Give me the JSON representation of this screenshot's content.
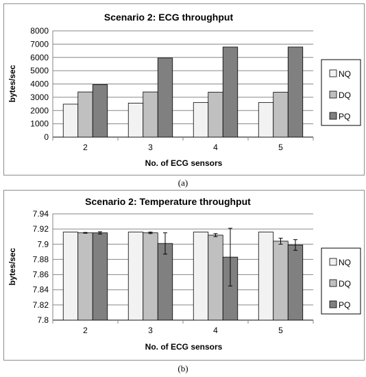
{
  "chart_data": [
    {
      "type": "bar",
      "title": "Scenario 2:  ECG throughput",
      "xlabel": "No. of ECG sensors",
      "ylabel": "bytes/sec",
      "categories": [
        "2",
        "3",
        "4",
        "5"
      ],
      "ylim": [
        0,
        8000
      ],
      "yticks": [
        "0",
        "1000",
        "2000",
        "3000",
        "4000",
        "5000",
        "6000",
        "7000",
        "8000"
      ],
      "grid": true,
      "legend_position": "right",
      "series": [
        {
          "name": "NQ",
          "color": "#f2f2f2",
          "values": [
            2480,
            2560,
            2600,
            2600
          ]
        },
        {
          "name": "DQ",
          "color": "#c0c0c0",
          "values": [
            3400,
            3400,
            3380,
            3380
          ]
        },
        {
          "name": "PQ",
          "color": "#808080",
          "values": [
            3950,
            5950,
            6780,
            6780
          ]
        }
      ]
    },
    {
      "type": "bar",
      "title": "Scenario 2:  Temperature throughput",
      "xlabel": "No. of ECG sensors",
      "ylabel": "bytes/sec",
      "categories": [
        "2",
        "3",
        "4",
        "5"
      ],
      "ylim": [
        7.8,
        7.94
      ],
      "yticks": [
        "7.8",
        "7.82",
        "7.84",
        "7.86",
        "7.88",
        "7.9",
        "7.92",
        "7.94"
      ],
      "grid": true,
      "legend_position": "right",
      "series": [
        {
          "name": "NQ",
          "color": "#f2f2f2",
          "values": [
            7.916,
            7.916,
            7.916,
            7.916
          ],
          "errors": [
            0,
            0,
            0,
            0
          ]
        },
        {
          "name": "DQ",
          "color": "#c0c0c0",
          "values": [
            7.915,
            7.915,
            7.912,
            7.904
          ],
          "errors": [
            0.0005,
            0.001,
            0.002,
            0.004
          ]
        },
        {
          "name": "PQ",
          "color": "#808080",
          "values": [
            7.915,
            7.901,
            7.883,
            7.899
          ],
          "errors": [
            0.0015,
            0.014,
            0.038,
            0.007
          ]
        }
      ]
    }
  ],
  "captions": [
    "(a)",
    "(b)"
  ]
}
